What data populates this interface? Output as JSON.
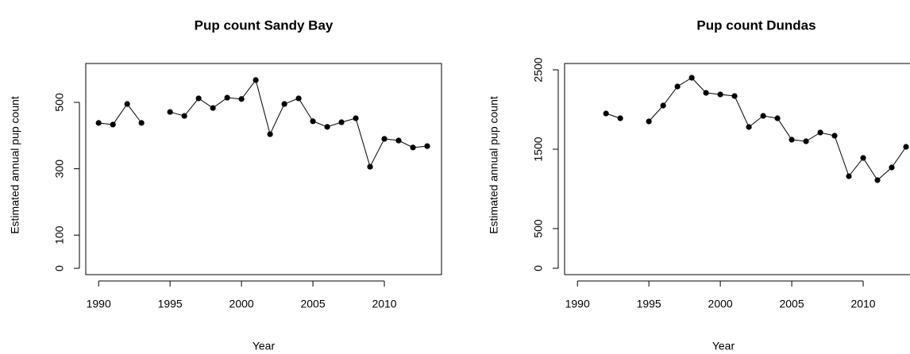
{
  "chart_data": [
    {
      "type": "line",
      "title": "Pup count Sandy Bay",
      "x_label": "Year",
      "y_label": "Estimated annual pup count",
      "x": [
        1990,
        1991,
        1992,
        1993,
        1994,
        1995,
        1996,
        1997,
        1998,
        1999,
        2000,
        2001,
        2002,
        2003,
        2004,
        2005,
        2006,
        2007,
        2008,
        2009,
        2010,
        2011,
        2012,
        2013
      ],
      "series": [
        {
          "color": "#000000",
          "values": [
            438,
            433,
            495,
            438,
            null,
            471,
            459,
            512,
            483,
            514,
            510,
            567,
            404,
            495,
            512,
            443,
            426,
            440,
            452,
            306,
            390,
            385,
            364,
            368
          ]
        }
      ],
      "xlim": [
        1989.1,
        2014
      ],
      "xticks": [
        1990,
        1995,
        2000,
        2005,
        2010
      ],
      "ylim": [
        -19,
        617
      ],
      "yticks": [
        0,
        100,
        300,
        500
      ]
    },
    {
      "type": "line",
      "title": "Pup count Dundas",
      "x_label": "Year",
      "y_label": "Estimated annual pup count",
      "x": [
        1990,
        1991,
        1992,
        1993,
        1994,
        1995,
        1996,
        1997,
        1998,
        1999,
        2000,
        2001,
        2002,
        2003,
        2004,
        2005,
        2006,
        2007,
        2008,
        2009,
        2010,
        2011,
        2012,
        2013
      ],
      "series": [
        {
          "color": "#000000",
          "values": [
            null,
            null,
            1950,
            1890,
            null,
            1850,
            2050,
            2290,
            2400,
            2210,
            2190,
            2170,
            1780,
            1920,
            1890,
            1620,
            1600,
            1710,
            1670,
            1160,
            1390,
            1110,
            1270,
            1530
          ]
        }
      ],
      "xlim": [
        1989.1,
        2014
      ],
      "xticks": [
        1990,
        1995,
        2000,
        2005,
        2010
      ],
      "ylim": [
        -80,
        2580
      ],
      "yticks": [
        0,
        500,
        1500,
        2500
      ]
    }
  ]
}
